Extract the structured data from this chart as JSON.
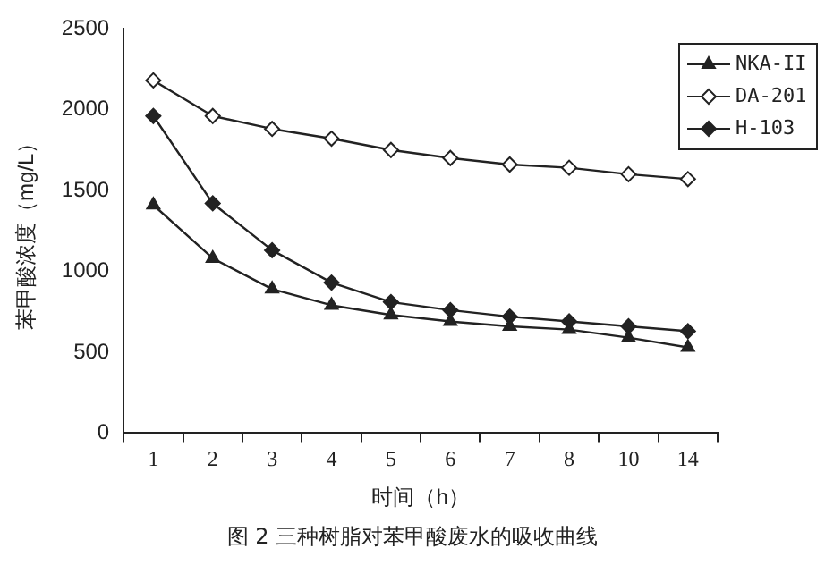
{
  "chart_data": {
    "type": "line",
    "xlabel": "时间（h）",
    "ylabel": "苯甲酸浓度（mg/L）",
    "categories": [
      "1",
      "2",
      "3",
      "4",
      "5",
      "6",
      "7",
      "8",
      "10",
      "14"
    ],
    "series": [
      {
        "name": "NKA-II",
        "color": "#222222",
        "marker": "triangle",
        "values": [
          1410,
          1080,
          890,
          790,
          730,
          690,
          660,
          640,
          590,
          530
        ]
      },
      {
        "name": "DA-201",
        "color": "#222222",
        "marker": "diamond",
        "values": [
          2180,
          1960,
          1880,
          1820,
          1750,
          1700,
          1660,
          1640,
          1600,
          1570
        ]
      },
      {
        "name": "H-103",
        "color": "#222222",
        "marker": "diamond-filled",
        "values": [
          1960,
          1420,
          1130,
          930,
          810,
          760,
          720,
          690,
          660,
          630
        ]
      }
    ],
    "ylim": [
      0,
      2500
    ],
    "yticks": [
      0,
      500,
      1000,
      1500,
      2000,
      2500
    ],
    "grid": false,
    "legend": "top right",
    "line_style": "solid",
    "annotations": [
      "图 2   三种树脂对苯甲酸废水的吸收曲线"
    ]
  }
}
